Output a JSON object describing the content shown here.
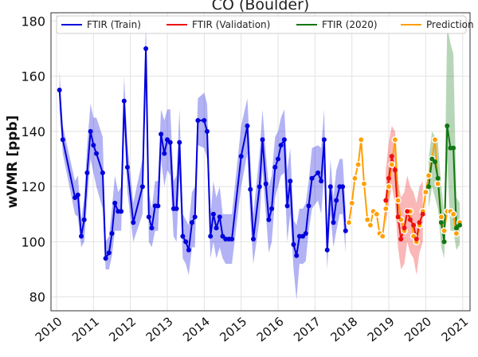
{
  "chart_data": {
    "type": "line",
    "title": "CO (Boulder)",
    "xlabel": "",
    "ylabel": "wVMR [ppb]",
    "xlim": [
      2009.85,
      2021.2
    ],
    "ylim": [
      75,
      183
    ],
    "yticks": [
      80,
      100,
      120,
      140,
      160,
      180
    ],
    "xticks": [
      "2010",
      "2011",
      "2012",
      "2013",
      "2014",
      "2015",
      "2016",
      "2017",
      "2018",
      "2019",
      "2020",
      "2021"
    ],
    "grid": true,
    "legend": "top",
    "legend_entries": [
      "FTIR (Train)",
      "FTIR (Validation)",
      "FTIR (2020)",
      "Prediction"
    ],
    "colors": {
      "train": "#0000dd",
      "validation": "#ee1111",
      "y2020": "#117711",
      "prediction": "#ff9f00"
    },
    "series": [
      {
        "name": "FTIR (Train)",
        "x": [
          2010.08,
          2010.17,
          2010.5,
          2010.58,
          2010.67,
          2010.75,
          2010.83,
          2010.92,
          2011.0,
          2011.08,
          2011.25,
          2011.33,
          2011.42,
          2011.5,
          2011.58,
          2011.67,
          2011.75,
          2011.83,
          2011.92,
          2012.08,
          2012.33,
          2012.42,
          2012.5,
          2012.58,
          2012.67,
          2012.75,
          2012.83,
          2012.92,
          2013.0,
          2013.08,
          2013.17,
          2013.25,
          2013.33,
          2013.42,
          2013.5,
          2013.58,
          2013.67,
          2013.75,
          2013.83,
          2014.0,
          2014.08,
          2014.17,
          2014.25,
          2014.33,
          2014.42,
          2014.5,
          2014.58,
          2014.67,
          2014.75,
          2015.0,
          2015.17,
          2015.25,
          2015.33,
          2015.5,
          2015.58,
          2015.67,
          2015.75,
          2015.83,
          2015.92,
          2016.0,
          2016.08,
          2016.17,
          2016.25,
          2016.33,
          2016.42,
          2016.5,
          2016.58,
          2016.67,
          2016.75,
          2016.83,
          2016.92,
          2017.08,
          2017.17,
          2017.25,
          2017.33,
          2017.42,
          2017.5,
          2017.58,
          2017.67,
          2017.75,
          2017.83
        ],
        "y": [
          155,
          137,
          116,
          117,
          102,
          108,
          125,
          140,
          135,
          132,
          125,
          94,
          96,
          103,
          114,
          111,
          111,
          151,
          127,
          107,
          120,
          170,
          109,
          105,
          113,
          113,
          139,
          132,
          137,
          136,
          112,
          112,
          136,
          102,
          100,
          97,
          107,
          109,
          144,
          144,
          140,
          102,
          110,
          105,
          109,
          102,
          101,
          101,
          101,
          131,
          142,
          119,
          101,
          120,
          137,
          121,
          108,
          112,
          127,
          130,
          135,
          137,
          113,
          122,
          99,
          95,
          102,
          102,
          103,
          113,
          123,
          125,
          122,
          137,
          97,
          120,
          107,
          115,
          120,
          120,
          104
        ],
        "lo": [
          148,
          132,
          110,
          109,
          98,
          100,
          115,
          130,
          125,
          120,
          112,
          90,
          90,
          95,
          104,
          104,
          104,
          142,
          118,
          100,
          110,
          160,
          100,
          98,
          104,
          104,
          130,
          120,
          126,
          124,
          102,
          100,
          124,
          94,
          92,
          88,
          98,
          98,
          135,
          134,
          130,
          94,
          100,
          94,
          98,
          94,
          92,
          92,
          92,
          120,
          132,
          108,
          92,
          108,
          126,
          110,
          96,
          100,
          116,
          120,
          124,
          125,
          100,
          110,
          90,
          79,
          92,
          92,
          93,
          104,
          112,
          115,
          110,
          125,
          90,
          110,
          98,
          104,
          110,
          110,
          96
        ],
        "hi": [
          162,
          142,
          122,
          124,
          108,
          116,
          135,
          150,
          145,
          145,
          138,
          100,
          102,
          112,
          124,
          118,
          120,
          160,
          136,
          114,
          130,
          180,
          118,
          112,
          122,
          122,
          148,
          144,
          148,
          148,
          122,
          124,
          148,
          110,
          108,
          106,
          118,
          120,
          152,
          154,
          150,
          110,
          122,
          116,
          120,
          110,
          110,
          110,
          110,
          142,
          152,
          130,
          110,
          132,
          148,
          132,
          120,
          124,
          138,
          140,
          145,
          148,
          126,
          134,
          108,
          106,
          112,
          112,
          114,
          122,
          134,
          135,
          134,
          148,
          104,
          130,
          116,
          126,
          130,
          130,
          112
        ]
      },
      {
        "name": "FTIR (Validation)",
        "x": [
          2018.92,
          2019.0,
          2019.08,
          2019.17,
          2019.25,
          2019.33,
          2019.42,
          2019.5,
          2019.58,
          2019.67,
          2019.75,
          2019.83,
          2019.92
        ],
        "y": [
          115,
          123,
          131,
          126,
          109,
          101,
          105,
          111,
          108,
          106,
          101,
          107,
          110
        ],
        "lo": [
          106,
          114,
          120,
          114,
          98,
          90,
          92,
          100,
          96,
          94,
          88,
          96,
          100
        ],
        "hi": [
          126,
          136,
          142,
          140,
          122,
          116,
          118,
          124,
          120,
          118,
          114,
          120,
          122
        ]
      },
      {
        "name": "FTIR (2020)",
        "x": [
          2020.08,
          2020.17,
          2020.25,
          2020.33,
          2020.42,
          2020.5,
          2020.58,
          2020.67,
          2020.75,
          2020.83,
          2020.92
        ],
        "y": [
          120,
          130,
          129,
          123,
          107,
          100,
          142,
          134,
          134,
          105,
          106
        ],
        "lo": [
          112,
          120,
          116,
          112,
          98,
          94,
          130,
          104,
          104,
          97,
          99
        ],
        "hi": [
          130,
          140,
          138,
          136,
          120,
          110,
          178,
          172,
          168,
          116,
          114
        ]
      },
      {
        "name": "Prediction",
        "x": [
          2017.92,
          2018.0,
          2018.08,
          2018.17,
          2018.25,
          2018.33,
          2018.42,
          2018.5,
          2018.58,
          2018.67,
          2018.75,
          2018.83,
          2018.92,
          2019.0,
          2019.08,
          2019.17,
          2019.25,
          2019.33,
          2019.42,
          2019.5,
          2019.58,
          2019.67,
          2019.75,
          2019.83,
          2019.92,
          2020.0,
          2020.08,
          2020.17,
          2020.25,
          2020.33,
          2020.42,
          2020.5,
          2020.58,
          2020.67,
          2020.75,
          2020.83,
          2020.92
        ],
        "y": [
          107,
          114,
          123,
          128,
          137,
          121,
          108,
          106,
          111,
          110,
          103,
          102,
          112,
          120,
          128,
          137,
          115,
          108,
          104,
          111,
          111,
          102,
          100,
          106,
          111,
          118,
          124,
          130,
          137,
          121,
          109,
          104,
          111,
          111,
          110,
          103,
          107
        ]
      }
    ]
  }
}
